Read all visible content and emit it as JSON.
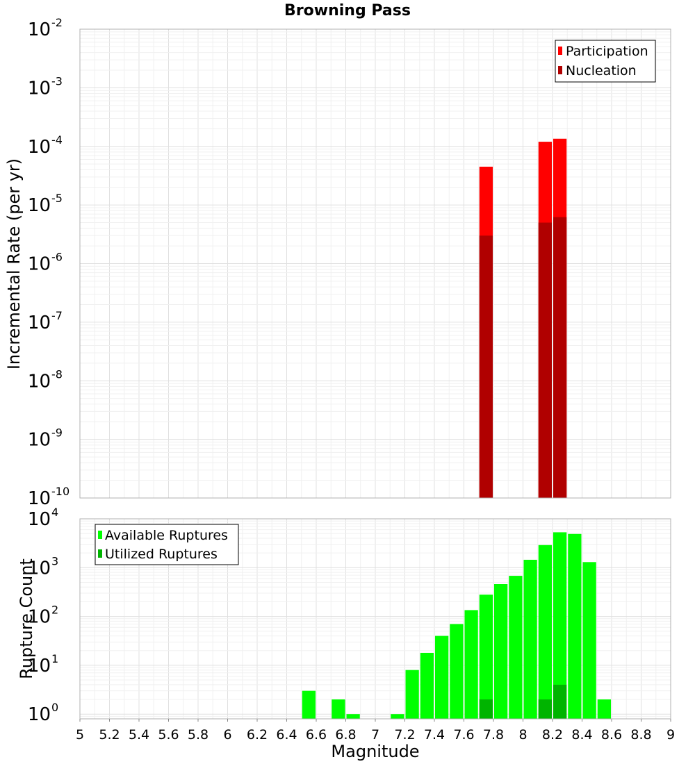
{
  "chart_data": [
    {
      "type": "bar",
      "title": "Browning Pass",
      "xlabel": "",
      "ylabel": "Incremental Rate (per yr)",
      "yscale": "log",
      "ylim": [
        1e-10,
        0.01
      ],
      "xlim": [
        5,
        9
      ],
      "bar_width": 0.1,
      "y_ticks": [
        {
          "base": "10",
          "exp": "-10"
        },
        {
          "base": "10",
          "exp": "-9"
        },
        {
          "base": "10",
          "exp": "-8"
        },
        {
          "base": "10",
          "exp": "-7"
        },
        {
          "base": "10",
          "exp": "-6"
        },
        {
          "base": "10",
          "exp": "-5"
        },
        {
          "base": "10",
          "exp": "-4"
        },
        {
          "base": "10",
          "exp": "-3"
        },
        {
          "base": "10",
          "exp": "-2"
        }
      ],
      "legend_position": "top-right",
      "grid": true,
      "series": [
        {
          "name": "Participation",
          "color": "#ff0000",
          "points": [
            {
              "x": 7.75,
              "y": 4.5e-05
            },
            {
              "x": 8.15,
              "y": 0.00012
            },
            {
              "x": 8.25,
              "y": 0.000135
            }
          ]
        },
        {
          "name": "Nucleation",
          "color": "#b00000",
          "points": [
            {
              "x": 7.75,
              "y": 3e-06
            },
            {
              "x": 8.15,
              "y": 5e-06
            },
            {
              "x": 8.25,
              "y": 6.2e-06
            }
          ]
        }
      ]
    },
    {
      "type": "bar",
      "title": "",
      "xlabel": "Magnitude",
      "ylabel": "Rupture Count",
      "yscale": "log",
      "ylim": [
        0.8,
        10000
      ],
      "xlim": [
        5,
        9
      ],
      "bar_width": 0.1,
      "x_ticks": [
        "5",
        "5.2",
        "5.4",
        "5.6",
        "5.8",
        "6",
        "6.2",
        "6.4",
        "6.6",
        "6.8",
        "7",
        "7.2",
        "7.4",
        "7.6",
        "7.8",
        "8",
        "8.2",
        "8.4",
        "8.6",
        "8.8",
        "9"
      ],
      "y_ticks": [
        {
          "base": "10",
          "exp": "0"
        },
        {
          "base": "10",
          "exp": "1"
        },
        {
          "base": "10",
          "exp": "2"
        },
        {
          "base": "10",
          "exp": "3"
        },
        {
          "base": "10",
          "exp": "4"
        }
      ],
      "legend_position": "top-left",
      "grid": true,
      "series": [
        {
          "name": "Available Ruptures",
          "color": "#00ff00",
          "points": [
            {
              "x": 6.55,
              "y": 3
            },
            {
              "x": 6.75,
              "y": 2
            },
            {
              "x": 6.85,
              "y": 1
            },
            {
              "x": 7.15,
              "y": 1
            },
            {
              "x": 7.25,
              "y": 8
            },
            {
              "x": 7.35,
              "y": 18
            },
            {
              "x": 7.45,
              "y": 40
            },
            {
              "x": 7.55,
              "y": 70
            },
            {
              "x": 7.65,
              "y": 135
            },
            {
              "x": 7.75,
              "y": 280
            },
            {
              "x": 7.85,
              "y": 460
            },
            {
              "x": 7.95,
              "y": 680
            },
            {
              "x": 8.05,
              "y": 1450
            },
            {
              "x": 8.15,
              "y": 2900
            },
            {
              "x": 8.25,
              "y": 5300
            },
            {
              "x": 8.35,
              "y": 4900
            },
            {
              "x": 8.45,
              "y": 1300
            },
            {
              "x": 8.55,
              "y": 2
            }
          ]
        },
        {
          "name": "Utilized Ruptures",
          "color": "#00b400",
          "points": [
            {
              "x": 7.75,
              "y": 2
            },
            {
              "x": 8.15,
              "y": 2
            },
            {
              "x": 8.25,
              "y": 4
            }
          ]
        }
      ]
    }
  ]
}
